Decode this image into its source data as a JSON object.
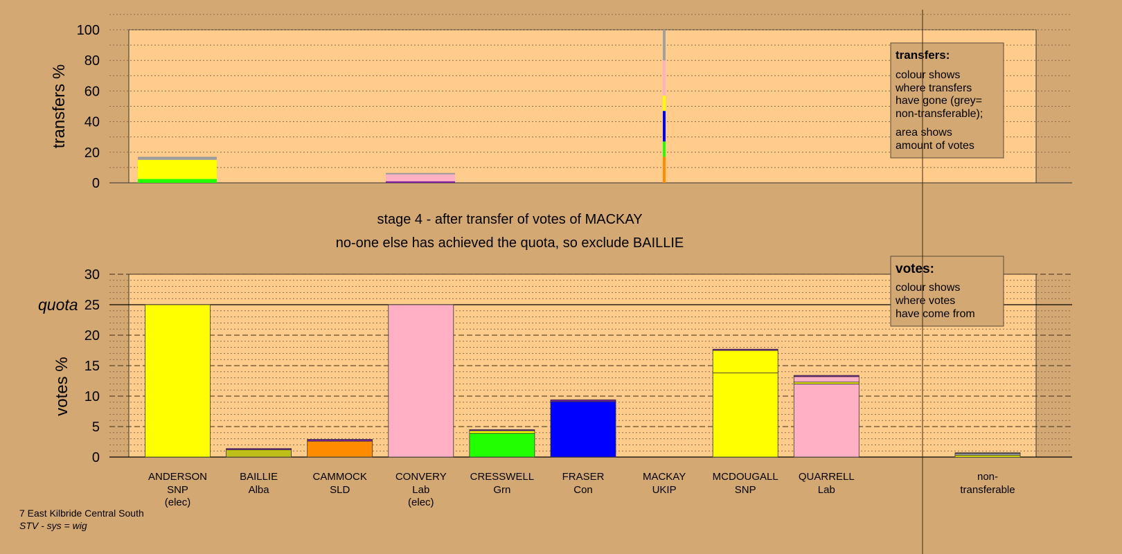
{
  "colors": {
    "background": "#d4a873",
    "plot_bg": "#ffcc8c",
    "legend_bg": "#d4a873",
    "SNP": "#ffff00",
    "Alba": "#bfbf1a",
    "SLD": "#ff8c00",
    "Lab": "#ffb0c4",
    "Grn": "#22ff00",
    "Con": "#0000ff",
    "UKIP": "#7a1fa0",
    "nontransferable": "#a0a0a0"
  },
  "stage_text": "stage 4 - after transfer of votes of MACKAY",
  "status_text": "no-one else has achieved the quota, so exclude BAILLIE",
  "footer": {
    "ward": "7 East Kilbride Central South",
    "system": "STV - sys = wig"
  },
  "legend_transfers": {
    "title": "transfers:",
    "line1": "colour shows",
    "line2": "where transfers",
    "line3": "have gone (grey=",
    "line4": "non-transferable);",
    "line5": "area shows",
    "line6": "amount of votes"
  },
  "legend_votes": {
    "title": "votes:",
    "line1": "colour shows",
    "line2": "where votes",
    "line3": "have come from"
  },
  "chart_data": [
    {
      "type": "bar",
      "ylabel": "transfers %",
      "ylim": [
        0,
        100
      ],
      "yticks": [
        0,
        20,
        40,
        60,
        80,
        100
      ],
      "grid": "dotted",
      "note": "stacked transfer bars, width proportional to number of votes transferred",
      "bars": [
        {
          "candidate": "ANDERSON",
          "segments": [
            {
              "party": "Grn",
              "value": 2.5
            },
            {
              "party": "SNP",
              "value": 12.5
            },
            {
              "party": "nontransferable",
              "value": 1.5
            }
          ]
        },
        {
          "candidate": "CONVERY",
          "segments": [
            {
              "party": "UKIP",
              "value": 1
            },
            {
              "party": "Lab",
              "value": 5
            }
          ]
        },
        {
          "candidate": "MACKAY",
          "segments": [
            {
              "party": "SLD",
              "value": 17
            },
            {
              "party": "Grn",
              "value": 10
            },
            {
              "party": "Con",
              "value": 20
            },
            {
              "party": "SNP",
              "value": 10
            },
            {
              "party": "Lab",
              "value": 23
            },
            {
              "party": "nontransferable",
              "value": 20
            }
          ]
        }
      ]
    },
    {
      "type": "bar",
      "ylabel": "votes %",
      "ylim": [
        0,
        30
      ],
      "yticks": [
        0,
        5,
        10,
        15,
        20,
        25,
        30
      ],
      "quota": 25,
      "quota_label": "quota",
      "grid": "dashed",
      "categories": [
        {
          "name": "ANDERSON",
          "party": "SNP",
          "elected": "(elec)",
          "segments": [
            {
              "party": "SNP",
              "value": 25
            }
          ]
        },
        {
          "name": "BAILLIE",
          "party": "Alba",
          "elected": "",
          "segments": [
            {
              "party": "Alba",
              "value": 1.2
            },
            {
              "party": "UKIP",
              "value": 0.2
            }
          ]
        },
        {
          "name": "CAMMOCK",
          "party": "SLD",
          "elected": "",
          "segments": [
            {
              "party": "SLD",
              "value": 2.6
            },
            {
              "party": "UKIP",
              "value": 0.3
            }
          ]
        },
        {
          "name": "CONVERY",
          "party": "Lab",
          "elected": "(elec)",
          "segments": [
            {
              "party": "Lab",
              "value": 25
            }
          ]
        },
        {
          "name": "CRESSWELL",
          "party": "Grn",
          "elected": "",
          "segments": [
            {
              "party": "Grn",
              "value": 3.9
            },
            {
              "party": "SNP",
              "value": 0.4
            },
            {
              "party": "UKIP",
              "value": 0.2
            }
          ]
        },
        {
          "name": "FRASER",
          "party": "Con",
          "elected": "",
          "segments": [
            {
              "party": "Con",
              "value": 9.1
            },
            {
              "party": "UKIP",
              "value": 0.3
            }
          ]
        },
        {
          "name": "MACKAY",
          "party": "UKIP",
          "elected": "",
          "segments": []
        },
        {
          "name": "MCDOUGALL",
          "party": "SNP",
          "elected": "",
          "segments": [
            {
              "party": "SNP",
              "value": 13.8
            },
            {
              "party": "SNP",
              "value": 3.7
            },
            {
              "party": "UKIP",
              "value": 0.2
            }
          ]
        },
        {
          "name": "QUARRELL",
          "party": "Lab",
          "elected": "",
          "segments": [
            {
              "party": "Lab",
              "value": 12
            },
            {
              "party": "SNP",
              "value": 0.3
            },
            {
              "party": "Lab",
              "value": 0.9
            },
            {
              "party": "UKIP",
              "value": 0.2
            }
          ]
        }
      ],
      "nontransferable": {
        "line1": "non-",
        "line2": "transferable",
        "segments": [
          {
            "party": "SNP",
            "value": 0.3
          },
          {
            "party": "nontransferable",
            "value": 0.3
          },
          {
            "party": "UKIP",
            "value": 0.1
          }
        ]
      }
    }
  ]
}
